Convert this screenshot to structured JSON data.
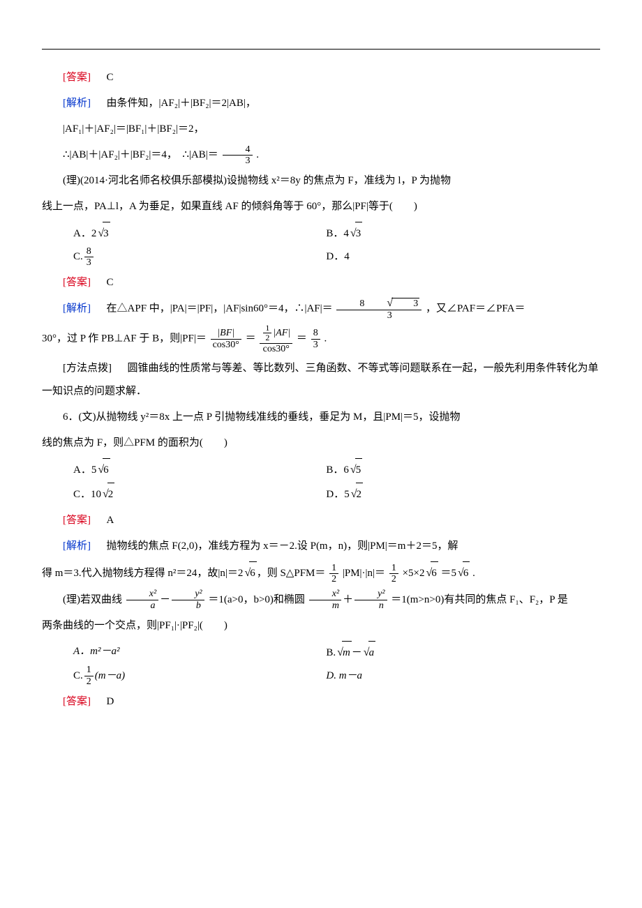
{
  "colors": {
    "answer": "#d9001b",
    "analysis": "#0033cc",
    "text": "#000000",
    "background": "#ffffff",
    "rule": "#000000"
  },
  "typography": {
    "body_family": "SimSun / Songti",
    "body_size_pt": 11,
    "math_family": "Times New Roman",
    "line_height": 2.2
  },
  "labels": {
    "answer": "[答案]",
    "analysis": "[解析]",
    "method": "[方法点拨]"
  },
  "block1": {
    "answer_letter": "C",
    "line1": "由条件知，|AF₂|＋|BF₂|＝2|AB|，",
    "line2": "|AF₁|＋|AF₂|＝|BF₁|＋|BF₂|＝2，",
    "line3_pre": "∴|AB|＋|AF₂|＋|BF₂|＝4，　∴|AB|＝",
    "line3_frac_num": "4",
    "line3_frac_den": "3",
    "line3_post": "."
  },
  "block2": {
    "stem_a": "(理)(2014·河北名师名校俱乐部模拟)设抛物线 x²＝8y 的焦点为 F，准线为 l，P 为抛物",
    "stem_b": "线上一点，PA⊥l，A 为垂足，如果直线 AF 的倾斜角等于 60°，那么|PF|等于(　　)",
    "options": {
      "A_pre": "A．2",
      "A_rad": "3",
      "B_pre": "B．4",
      "B_rad": "3",
      "C_pre": "C.",
      "C_num": "8",
      "C_den": "3",
      "D": "D．4"
    },
    "answer_letter": "C",
    "analysis_a_pre": "在△APF 中，|PA|＝|PF|，|AF|sin60°＝4，∴|AF|＝",
    "analysis_a_num": "8√3",
    "analysis_a_den": "3",
    "analysis_a_post": "，又∠PAF＝∠PFA＝",
    "analysis_b_pre": "30°，过 P 作 PB⊥AF 于 B，则|PF|＝",
    "f1_num": "|BF|",
    "f1_den": "cos30°",
    "f2_num_num": "1",
    "f2_num_den": "2",
    "f2_num_post": "|AF|",
    "f2_den": "cos30°",
    "f3_num": "8",
    "f3_den": "3",
    "analysis_b_post": "."
  },
  "method_text": "圆锥曲线的性质常与等差、等比数列、三角函数、不等式等问题联系在一起，一般先利用条件转化为单一知识点的问题求解．",
  "block3": {
    "stem_a": "6．(文)从抛物线 y²＝8x 上一点 P 引抛物线准线的垂线，垂足为 M，且|PM|＝5，设抛物",
    "stem_b": "线的焦点为 F，则△PFM 的面积为(　　)",
    "options": {
      "A_pre": "A．5",
      "A_rad": "6",
      "B_pre": "B．6",
      "B_rad": "5",
      "C_pre": "C．10",
      "C_rad": "2",
      "D_pre": "D．5",
      "D_rad": "2"
    },
    "answer_letter": "A",
    "analysis_a": "抛物线的焦点 F(2,0)，准线方程为 x＝－2.设 P(m，n)，则|PM|＝m＋2＝5，解",
    "analysis_b_pre": "得 m＝3.代入抛物线方程得 n²＝24，故|n|＝2",
    "analysis_b_rad1": "6",
    "analysis_b_mid": "，则 S△PFM＝",
    "s1_num": "1",
    "s1_den": "2",
    "analysis_b_mid2": "|PM|·|n|＝",
    "s2_num": "1",
    "s2_den": "2",
    "analysis_b_mid3": "×5×2",
    "analysis_b_rad2": "6",
    "analysis_b_mid4": "＝5",
    "analysis_b_rad3": "6",
    "analysis_b_post": "."
  },
  "block4": {
    "stem_a_pre": "(理)若双曲线",
    "h1_num": "x²",
    "h1_den": "a",
    "h2_num": "y²",
    "h2_den": "b",
    "stem_a_mid": "＝1(a>0，b>0)和椭圆",
    "h3_num": "x²",
    "h3_den": "m",
    "h4_num": "y²",
    "h4_den": "n",
    "stem_a_post": "＝1(m>n>0)有共同的焦点 F₁、F₂，P 是",
    "stem_b": "两条曲线的一个交点，则|PF₁|·|PF₂|(　　)",
    "options": {
      "A": "A．m²－a²",
      "B_pre": "B.",
      "B_rad1": "m",
      "B_mid": "－",
      "B_rad2": "a",
      "C_pre": "C.",
      "C_num": "1",
      "C_den": "2",
      "C_post": "(m－a)",
      "D": "D. m－a"
    },
    "answer_letter": "D"
  }
}
